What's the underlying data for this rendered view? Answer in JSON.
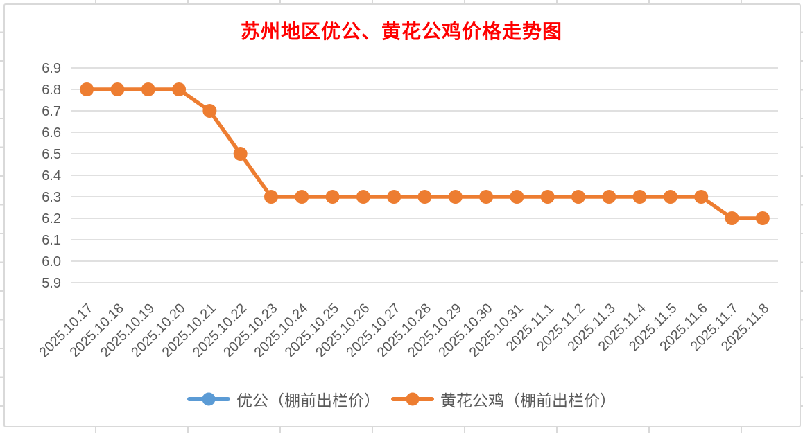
{
  "chart_data": {
    "type": "line",
    "title": "苏州地区优公、黄花公鸡价格走势图",
    "title_color": "#FF0000",
    "x": [
      "2025.10.17",
      "2025.10.18",
      "2025.10.19",
      "2025.10.20",
      "2025.10.21",
      "2025.10.22",
      "2025.10.23",
      "2025.10.24",
      "2025.10.25",
      "2025.10.26",
      "2025.10.27",
      "2025.10.28",
      "2025.10.29",
      "2025.10.30",
      "2025.10.31",
      "2025.11.1",
      "2025.11.2",
      "2025.11.3",
      "2025.11.4",
      "2025.11.5",
      "2025.11.6",
      "2025.11.7",
      "2025.11.8"
    ],
    "series": [
      {
        "name": "优公（棚前出栏价）",
        "color": "#5B9BD5",
        "marker": "circle",
        "values": [],
        "visible_in_plot": false
      },
      {
        "name": "黄花公鸡（棚前出栏价）",
        "color": "#ED7D31",
        "marker": "circle",
        "values": [
          6.8,
          6.8,
          6.8,
          6.8,
          6.7,
          6.5,
          6.3,
          6.3,
          6.3,
          6.3,
          6.3,
          6.3,
          6.3,
          6.3,
          6.3,
          6.3,
          6.3,
          6.3,
          6.3,
          6.3,
          6.3,
          6.2,
          6.2
        ]
      }
    ],
    "ylim": [
      5.9,
      6.9
    ],
    "ytick_step": 0.1,
    "y_tick_labels": [
      "6.9",
      "6.8",
      "6.7",
      "6.6",
      "6.5",
      "6.4",
      "6.3",
      "6.2",
      "6.1",
      "6.0",
      "5.9"
    ],
    "grid": true,
    "gridline_color": "#DBDBDB",
    "axis_text_color": "#595959",
    "x_axis_rotation": 45,
    "legend_position": "bottom"
  },
  "legend": {
    "items": [
      {
        "label": "优公（棚前出栏价）",
        "color": "#5B9BD5"
      },
      {
        "label": "黄花公鸡（棚前出栏价）",
        "color": "#ED7D31"
      }
    ]
  }
}
